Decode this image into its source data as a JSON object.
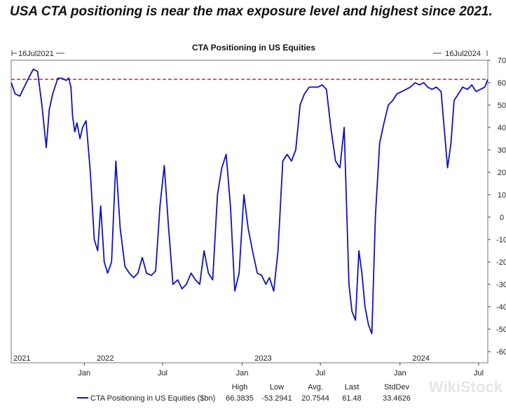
{
  "headline": "USA CTA positioning is near the max exposure level and highest since 2021.",
  "watermark": "WikiStock",
  "chart_data": {
    "type": "line",
    "title": "CTA Positioning in US Equities",
    "start_marker": "16Jul2021",
    "end_marker": "16Jul2024",
    "ylim": [
      -65,
      70
    ],
    "y_ticks": [
      "70",
      "60",
      "50",
      "40",
      "30",
      "20",
      "10",
      "0",
      "-10",
      "-20",
      "-30",
      "-40",
      "-50",
      "-60"
    ],
    "y_tick_values": [
      70,
      60,
      50,
      40,
      30,
      20,
      10,
      0,
      -10,
      -20,
      -30,
      -40,
      -50,
      -60
    ],
    "x_months": [
      "Jan",
      "Jul",
      "Jan",
      "Jul",
      "Jan",
      "Jul"
    ],
    "x_month_dates": [
      "2022-01-01",
      "2022-07-01",
      "2023-01-01",
      "2023-07-01",
      "2024-01-01",
      "2024-07-01"
    ],
    "x_years": [
      "2021",
      "2022",
      "2023",
      "2024"
    ],
    "x_year_dates": [
      "2021-07-16",
      "2022-02-15",
      "2023-02-15",
      "2024-02-15"
    ],
    "x_range": [
      "2021-07-16",
      "2024-07-22"
    ],
    "grid": false,
    "reference_line": {
      "y": 61.48,
      "color": "#e03030",
      "style": "dashed"
    },
    "series": [
      {
        "name": "CTA Positioning in US Equities ($bn)",
        "color": "#1010c0",
        "x": [
          "2021-07-16",
          "2021-07-25",
          "2021-08-05",
          "2021-08-15",
          "2021-08-25",
          "2021-09-05",
          "2021-09-15",
          "2021-09-25",
          "2021-10-05",
          "2021-10-12",
          "2021-10-20",
          "2021-11-01",
          "2021-11-10",
          "2021-11-20",
          "2021-11-26",
          "2021-12-01",
          "2021-12-05",
          "2021-12-10",
          "2021-12-15",
          "2021-12-22",
          "2021-12-28",
          "2022-01-05",
          "2022-01-15",
          "2022-01-24",
          "2022-02-01",
          "2022-02-08",
          "2022-02-16",
          "2022-02-24",
          "2022-03-05",
          "2022-03-15",
          "2022-03-25",
          "2022-04-05",
          "2022-04-15",
          "2022-04-25",
          "2022-05-05",
          "2022-05-15",
          "2022-05-25",
          "2022-06-05",
          "2022-06-15",
          "2022-06-25",
          "2022-07-05",
          "2022-07-15",
          "2022-07-25",
          "2022-08-05",
          "2022-08-15",
          "2022-08-25",
          "2022-09-05",
          "2022-09-15",
          "2022-09-25",
          "2022-10-05",
          "2022-10-15",
          "2022-10-25",
          "2022-11-05",
          "2022-11-15",
          "2022-11-25",
          "2022-12-05",
          "2022-12-15",
          "2022-12-25",
          "2023-01-05",
          "2023-01-15",
          "2023-01-25",
          "2023-02-05",
          "2023-02-15",
          "2023-02-25",
          "2023-03-05",
          "2023-03-15",
          "2023-03-25",
          "2023-04-05",
          "2023-04-15",
          "2023-04-25",
          "2023-05-05",
          "2023-05-15",
          "2023-05-25",
          "2023-06-05",
          "2023-06-15",
          "2023-06-25",
          "2023-07-05",
          "2023-07-15",
          "2023-07-25",
          "2023-08-05",
          "2023-08-15",
          "2023-08-25",
          "2023-09-05",
          "2023-09-12",
          "2023-09-20",
          "2023-09-28",
          "2023-10-05",
          "2023-10-12",
          "2023-10-20",
          "2023-10-28",
          "2023-11-05",
          "2023-11-15",
          "2023-11-25",
          "2023-12-05",
          "2023-12-15",
          "2023-12-25",
          "2024-01-05",
          "2024-01-15",
          "2024-01-25",
          "2024-02-05",
          "2024-02-15",
          "2024-02-25",
          "2024-03-05",
          "2024-03-15",
          "2024-03-25",
          "2024-04-05",
          "2024-04-12",
          "2024-04-20",
          "2024-04-28",
          "2024-05-05",
          "2024-05-15",
          "2024-05-25",
          "2024-06-05",
          "2024-06-15",
          "2024-06-25",
          "2024-07-05",
          "2024-07-15",
          "2024-07-22"
        ],
        "values": [
          60,
          55,
          54,
          58,
          62,
          66,
          65,
          50,
          31,
          48,
          55,
          62,
          62,
          61,
          62,
          58,
          45,
          38,
          42,
          35,
          40,
          43,
          20,
          -10,
          -15,
          5,
          -20,
          -25,
          -20,
          25,
          -5,
          -22,
          -25,
          -27,
          -25,
          -18,
          -25,
          -26,
          -24,
          5,
          23,
          -5,
          -30,
          -28,
          -32,
          -30,
          -25,
          -28,
          -30,
          -15,
          -25,
          -28,
          10,
          22,
          28,
          5,
          -33,
          -25,
          10,
          -5,
          -15,
          -25,
          -26,
          -30,
          -27,
          -33,
          -15,
          25,
          28,
          25,
          30,
          50,
          55,
          58,
          58,
          58,
          59,
          57,
          40,
          25,
          22,
          40,
          -30,
          -42,
          -46,
          -15,
          -25,
          -40,
          -48,
          -52,
          0,
          33,
          42,
          50,
          52,
          55,
          56,
          57,
          58,
          60,
          59,
          60,
          58,
          57,
          58,
          56,
          40,
          22,
          33,
          52,
          55,
          58,
          57,
          59,
          56,
          57,
          58,
          61.48
        ],
        "stats_headers": [
          "High",
          "Low",
          "Avg.",
          "Last",
          "StdDev"
        ],
        "stats_values": [
          "66.3835",
          "-53.2941",
          "20.7544",
          "61.48",
          "33.4626"
        ]
      }
    ]
  }
}
